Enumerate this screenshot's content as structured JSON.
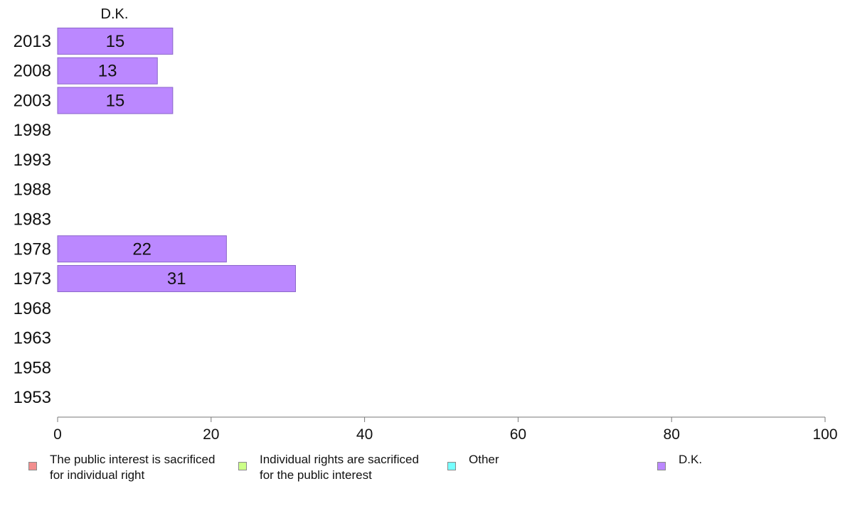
{
  "chart_data": {
    "type": "bar",
    "orientation": "horizontal",
    "panel_title": "D.K.",
    "categories": [
      "2013",
      "2008",
      "2003",
      "1998",
      "1993",
      "1988",
      "1983",
      "1978",
      "1973",
      "1968",
      "1963",
      "1958",
      "1953"
    ],
    "series": [
      {
        "name": "D.K.",
        "color": "#bb88ff",
        "values": [
          15,
          13,
          15,
          null,
          null,
          null,
          null,
          22,
          31,
          null,
          null,
          null,
          null
        ],
        "labels": [
          "15",
          "13",
          "15",
          "",
          "",
          "",
          "",
          "22",
          "31",
          "",
          "",
          "",
          ""
        ]
      }
    ],
    "xlim": [
      0,
      100
    ],
    "xticks": [
      0,
      20,
      40,
      60,
      80,
      100
    ],
    "xtick_labels": [
      "0",
      "20",
      "40",
      "60",
      "80",
      "100"
    ],
    "grid": false,
    "legend_position": "bottom"
  },
  "legend": [
    {
      "label": "The public interest is sacrificed\nfor individual right",
      "color": "#f28e8e"
    },
    {
      "label": "Individual rights are sacrificed\nfor the public interest",
      "color": "#ccff88"
    },
    {
      "label": "Other",
      "color": "#77ffff"
    },
    {
      "label": "D.K.",
      "color": "#bb88ff"
    }
  ]
}
